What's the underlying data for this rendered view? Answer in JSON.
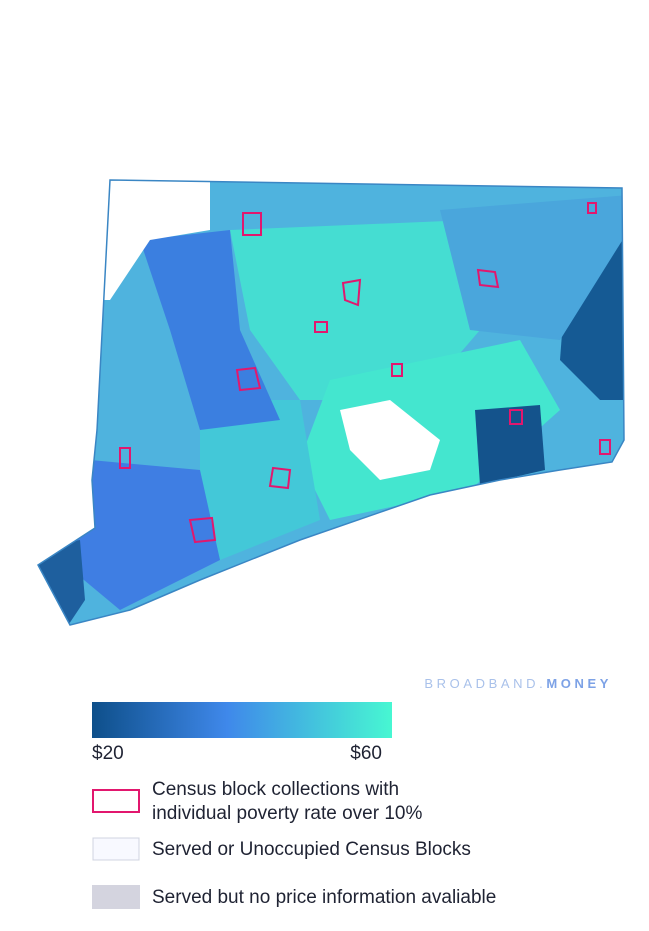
{
  "brand": {
    "prefix": "BROADBAND.",
    "suffix": "MONEY"
  },
  "legend": {
    "scale": {
      "min_label": "$20",
      "max_label": "$60"
    },
    "items": [
      {
        "lines": [
          "Census block collections with",
          "individual poverty rate over 10%"
        ]
      },
      {
        "lines": [
          "Served or Unoccupied Census Blocks"
        ]
      },
      {
        "lines": [
          "Served but no price information avaliable"
        ]
      }
    ]
  }
}
